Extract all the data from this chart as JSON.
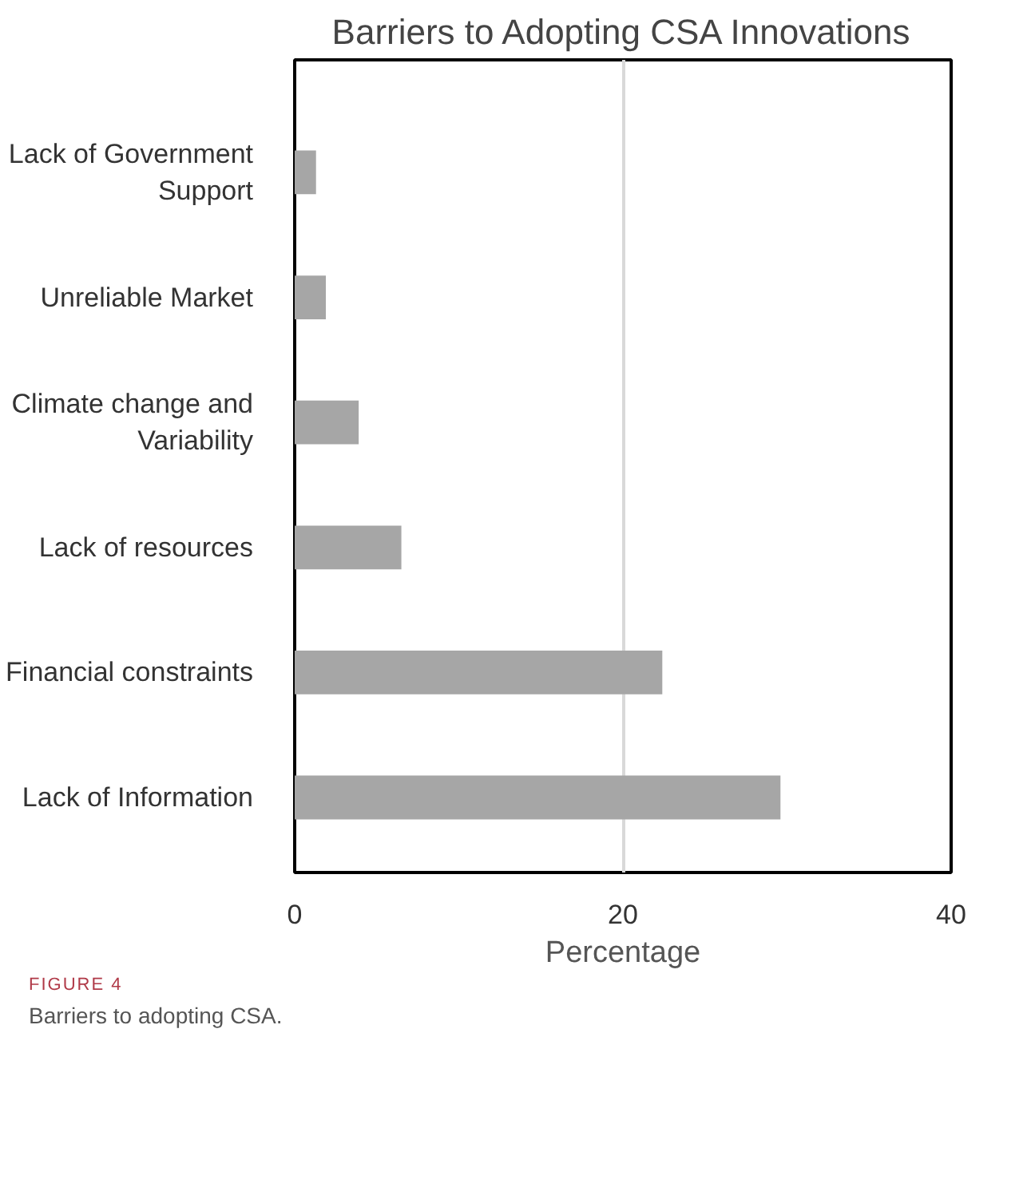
{
  "chart_data": {
    "type": "bar",
    "orientation": "horizontal",
    "title": "Barriers to Adopting CSA Innovations",
    "xlabel": "Percentage",
    "categories": [
      "Lack of Government Support",
      "Unreliable Market",
      "Climate change and Variability",
      "Lack of resources",
      "Financial constraints",
      "Lack of Information"
    ],
    "values": [
      1.3,
      1.9,
      3.9,
      6.5,
      22.4,
      29.6
    ],
    "color": "#a6a6a6",
    "xlim": [
      0,
      40
    ],
    "xticks": [
      0,
      20,
      40
    ],
    "grid": "x",
    "annotations": [
      "FIGURE 4",
      "Barriers to adopting CSA."
    ]
  }
}
